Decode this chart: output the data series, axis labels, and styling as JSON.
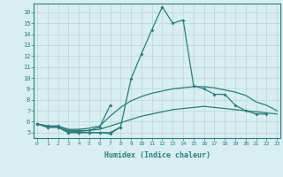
{
  "xlabel": "Humidex (Indice chaleur)",
  "line_color": "#2e7d7d",
  "bg_color": "#d8eef0",
  "grid_color": "#b8d8d8",
  "yticks": [
    5,
    6,
    7,
    8,
    9,
    10,
    11,
    12,
    13,
    14,
    15,
    16
  ],
  "xticks": [
    0,
    1,
    2,
    3,
    4,
    5,
    6,
    7,
    8,
    9,
    10,
    11,
    12,
    13,
    14,
    15,
    16,
    17,
    18,
    19,
    20,
    21,
    22,
    23
  ],
  "ylim_min": 4.5,
  "ylim_max": 16.8,
  "xlim_min": -0.3,
  "xlim_max": 23.3,
  "line1_x": [
    0,
    1,
    2,
    3,
    4,
    5,
    6,
    7,
    8,
    9,
    10,
    11,
    12,
    13,
    14,
    15,
    16,
    17,
    18,
    19,
    20,
    21,
    22
  ],
  "line1_y": [
    5.8,
    5.5,
    5.5,
    5.0,
    5.0,
    5.0,
    5.0,
    5.0,
    5.5,
    9.9,
    12.2,
    14.4,
    16.5,
    15.0,
    15.3,
    9.3,
    9.0,
    8.5,
    8.5,
    7.5,
    7.0,
    6.7,
    6.7
  ],
  "line2_x": [
    0,
    1,
    2,
    3,
    4,
    5,
    6,
    7,
    8
  ],
  "line2_y": [
    5.8,
    5.5,
    5.5,
    5.0,
    5.0,
    5.0,
    5.0,
    4.9,
    5.5
  ],
  "line3_x": [
    0,
    1,
    2,
    3,
    4,
    5,
    6,
    7
  ],
  "line3_y": [
    5.8,
    5.6,
    5.6,
    5.2,
    5.2,
    5.2,
    5.5,
    7.5
  ],
  "line4_x": [
    0,
    1,
    2,
    3,
    4,
    5,
    6,
    7,
    8,
    9,
    10,
    11,
    12,
    13,
    14,
    15,
    16,
    17,
    18,
    19,
    20,
    21,
    22,
    23
  ],
  "line4_y": [
    5.8,
    5.6,
    5.6,
    5.3,
    5.3,
    5.4,
    5.6,
    6.5,
    7.3,
    7.9,
    8.3,
    8.6,
    8.8,
    9.0,
    9.1,
    9.2,
    9.2,
    9.1,
    8.9,
    8.7,
    8.4,
    7.8,
    7.5,
    7.0
  ],
  "line5_x": [
    0,
    1,
    2,
    3,
    4,
    5,
    6,
    7,
    8,
    9,
    10,
    11,
    12,
    13,
    14,
    15,
    16,
    17,
    18,
    19,
    20,
    21,
    22,
    23
  ],
  "line5_y": [
    5.8,
    5.5,
    5.5,
    5.1,
    5.1,
    5.2,
    5.3,
    5.6,
    5.9,
    6.2,
    6.5,
    6.7,
    6.9,
    7.1,
    7.2,
    7.3,
    7.4,
    7.3,
    7.2,
    7.1,
    7.0,
    6.9,
    6.8,
    6.7
  ]
}
